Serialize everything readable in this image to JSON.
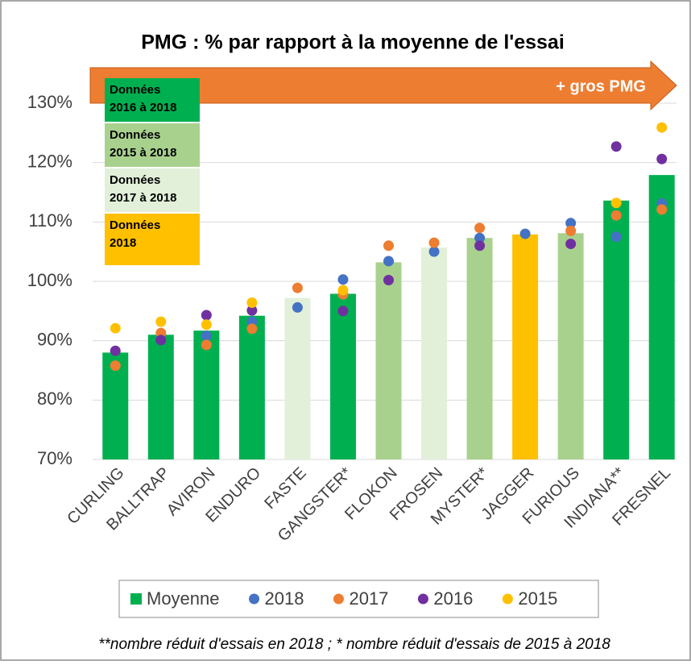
{
  "chart_data": {
    "type": "bar",
    "title": "PMG : % par rapport à la moyenne de l'essai",
    "annotation": "+ gros PMG",
    "footnote": "**nombre réduit d'essais en 2018  ; * nombre réduit d'essais de 2015 à 2018",
    "categories": [
      "CURLING",
      "BALLTRAP",
      "AVIRON",
      "ENDURO",
      "FASTE",
      "GANGSTER*",
      "FLOKON",
      "FROSEN",
      "MYSTER*",
      "JAGGER",
      "FURIOUS",
      "INDIANA**",
      "FRESNEL"
    ],
    "series": [
      {
        "name": "Moyenne",
        "type": "bar",
        "color": "#00b050",
        "bar_colors": [
          "#00b050",
          "#00b050",
          "#00b050",
          "#00b050",
          "#e2f0d9",
          "#00b050",
          "#a9d18e",
          "#e2f0d9",
          "#a9d18e",
          "#ffc000",
          "#a9d18e",
          "#00b050",
          "#00b050"
        ],
        "values": [
          88.0,
          91.0,
          91.7,
          94.2,
          97.2,
          97.9,
          103.2,
          105.7,
          107.3,
          107.9,
          108.1,
          113.6,
          117.9
        ]
      },
      {
        "name": "2018",
        "type": "scatter",
        "color": "#4472c4",
        "values": [
          null,
          90.3,
          90.8,
          93.2,
          95.6,
          100.3,
          103.4,
          105.0,
          107.3,
          108.0,
          109.8,
          107.5,
          113.1
        ]
      },
      {
        "name": "2017",
        "type": "scatter",
        "color": "#ed7d31",
        "values": [
          85.8,
          91.3,
          89.3,
          92.0,
          98.9,
          97.8,
          106.0,
          106.5,
          109.0,
          null,
          108.5,
          111.1,
          112.1
        ]
      },
      {
        "name": "2016",
        "type": "scatter",
        "color": "#7030a0",
        "values": [
          88.3,
          90.1,
          94.3,
          95.1,
          null,
          95.0,
          100.2,
          null,
          106.0,
          null,
          106.3,
          122.7,
          120.6
        ]
      },
      {
        "name": "2015",
        "type": "scatter",
        "color": "#ffc000",
        "values": [
          92.1,
          93.2,
          92.7,
          96.4,
          null,
          98.5,
          null,
          null,
          null,
          null,
          null,
          113.2,
          125.9
        ]
      }
    ],
    "color_key": [
      {
        "lines": [
          "Données",
          "2016 à 2018"
        ],
        "color": "#00b050"
      },
      {
        "lines": [
          "Données",
          "2015 à 2018"
        ],
        "color": "#a9d18e"
      },
      {
        "lines": [
          "Données",
          "2017 à 2018"
        ],
        "color": "#e2f0d9"
      },
      {
        "lines": [
          "Données",
          "2018"
        ],
        "color": "#ffc000"
      }
    ],
    "ylim": [
      70,
      130
    ],
    "yticks": [
      {
        "value": 70,
        "label": "70%"
      },
      {
        "value": 80,
        "label": "80%"
      },
      {
        "value": 90,
        "label": "90%"
      },
      {
        "value": 100,
        "label": "100%"
      },
      {
        "value": 110,
        "label": "110%"
      },
      {
        "value": 120,
        "label": "120%"
      },
      {
        "value": 130,
        "label": "130%"
      }
    ],
    "grid": true,
    "legend": "bottom"
  }
}
